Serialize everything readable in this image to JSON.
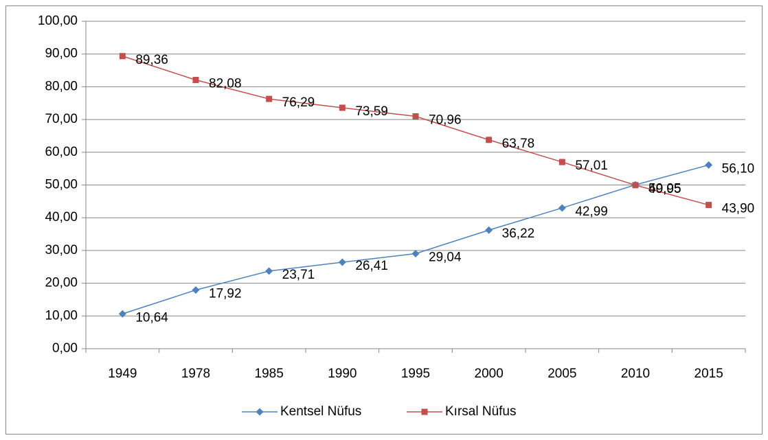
{
  "chart_data": {
    "type": "line",
    "categories": [
      "1949",
      "1978",
      "1985",
      "1990",
      "1995",
      "2000",
      "2005",
      "2010",
      "2015"
    ],
    "series": [
      {
        "name": "Kentsel Nüfus",
        "color": "#4f81bd",
        "marker": "diamond",
        "values": [
          10.64,
          17.92,
          23.71,
          26.41,
          29.04,
          36.22,
          42.99,
          50.05,
          56.1
        ],
        "value_labels": [
          "10,64",
          "17,92",
          "23,71",
          "26,41",
          "29,04",
          "36,22",
          "42,99",
          "50,05",
          "56,10"
        ]
      },
      {
        "name": "Kırsal Nüfus",
        "color": "#c0504d",
        "marker": "square",
        "values": [
          89.36,
          82.08,
          76.29,
          73.59,
          70.96,
          63.78,
          57.01,
          49.95,
          43.9
        ],
        "value_labels": [
          "89,36",
          "82,08",
          "76,29",
          "73,59",
          "70,96",
          "63,78",
          "57,01",
          "49,95",
          "43,90"
        ]
      }
    ],
    "ylim": [
      0,
      100
    ],
    "yticks": [
      {
        "value": 0,
        "label": "0,00"
      },
      {
        "value": 10,
        "label": "10,00"
      },
      {
        "value": 20,
        "label": "20,00"
      },
      {
        "value": 30,
        "label": "30,00"
      },
      {
        "value": 40,
        "label": "40,00"
      },
      {
        "value": 50,
        "label": "50,00"
      },
      {
        "value": 60,
        "label": "60,00"
      },
      {
        "value": 70,
        "label": "70,00"
      },
      {
        "value": 80,
        "label": "80,00"
      },
      {
        "value": 90,
        "label": "90,00"
      },
      {
        "value": 100,
        "label": "100,00"
      }
    ],
    "grid": true,
    "legend": "bottom"
  }
}
